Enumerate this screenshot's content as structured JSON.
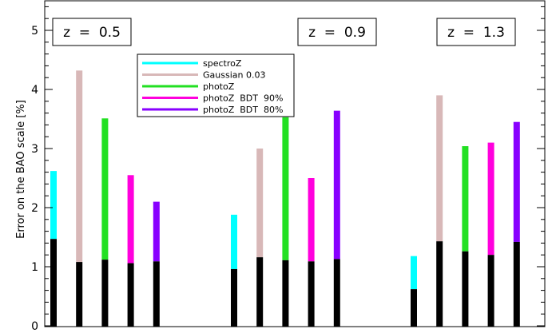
{
  "chart_data": {
    "type": "bar",
    "ylabel": "Error on the BAO scale [%]",
    "xlabel": "",
    "ylim": [
      0,
      5.5
    ],
    "yticks": [
      0,
      1,
      2,
      3,
      4,
      5
    ],
    "grid": false,
    "legend_placement": "top-left",
    "series": [
      {
        "name": "spectroZ",
        "color": "#00ffff"
      },
      {
        "name": "Gaussian 0.03",
        "color": "#d8b8b8"
      },
      {
        "name": "photoZ",
        "color": "#22e022"
      },
      {
        "name": "photoZ  BDT  90%",
        "color": "#ff00dd"
      },
      {
        "name": "photoZ  BDT  80%",
        "color": "#8800ff"
      }
    ],
    "base_color": "#000000",
    "groups": [
      {
        "label": "z  =  0.5",
        "bars": [
          {
            "series": "spectroZ",
            "total": 2.62,
            "base": 1.47
          },
          {
            "series": "Gaussian 0.03",
            "total": 4.32,
            "base": 1.08
          },
          {
            "series": "photoZ",
            "total": 3.51,
            "base": 1.12
          },
          {
            "series": "photoZ  BDT  90%",
            "total": 2.55,
            "base": 1.06
          },
          {
            "series": "photoZ  BDT  80%",
            "total": 2.1,
            "base": 1.09
          }
        ]
      },
      {
        "label": "z  =  0.9",
        "bars": [
          {
            "series": "spectroZ",
            "total": 1.88,
            "base": 0.96
          },
          {
            "series": "Gaussian 0.03",
            "total": 3.0,
            "base": 1.16
          },
          {
            "series": "photoZ",
            "total": 3.53,
            "base": 1.11
          },
          {
            "series": "photoZ  BDT  90%",
            "total": 2.5,
            "base": 1.09
          },
          {
            "series": "photoZ  BDT  80%",
            "total": 3.64,
            "base": 1.13
          }
        ]
      },
      {
        "label": "z  =  1.3",
        "bars": [
          {
            "series": "spectroZ",
            "total": 1.18,
            "base": 0.62
          },
          {
            "series": "Gaussian 0.03",
            "total": 3.9,
            "base": 1.43
          },
          {
            "series": "photoZ",
            "total": 3.04,
            "base": 1.26
          },
          {
            "series": "photoZ  BDT  90%",
            "total": 3.1,
            "base": 1.2
          },
          {
            "series": "photoZ  BDT  80%",
            "total": 3.45,
            "base": 1.42
          }
        ]
      }
    ]
  }
}
